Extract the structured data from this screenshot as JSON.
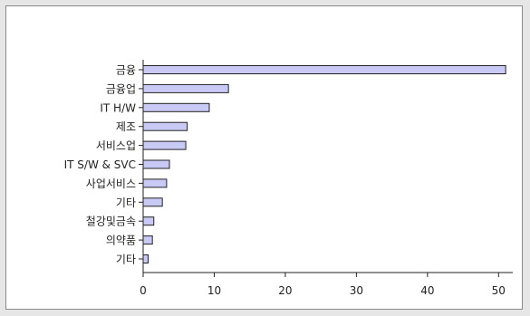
{
  "chart_data": {
    "type": "bar",
    "orientation": "horizontal",
    "categories": [
      "금융",
      "금융업",
      "IT H/W",
      "제조",
      "서비스업",
      "IT S/W & SVC",
      "사업서비스",
      "기타",
      "철강및금속",
      "의약품",
      "기타"
    ],
    "values": [
      51,
      12,
      9.3,
      6.2,
      6.0,
      3.7,
      3.3,
      2.7,
      1.5,
      1.3,
      0.7
    ],
    "xlim": [
      0,
      52
    ],
    "xticks": [
      0,
      10,
      20,
      30,
      40,
      50
    ],
    "title": "",
    "xlabel": "",
    "ylabel": "",
    "grid": false,
    "colors": {
      "bar_fill": "#c9c9f5",
      "bar_stroke": "#222222",
      "axis": "#222222"
    }
  }
}
